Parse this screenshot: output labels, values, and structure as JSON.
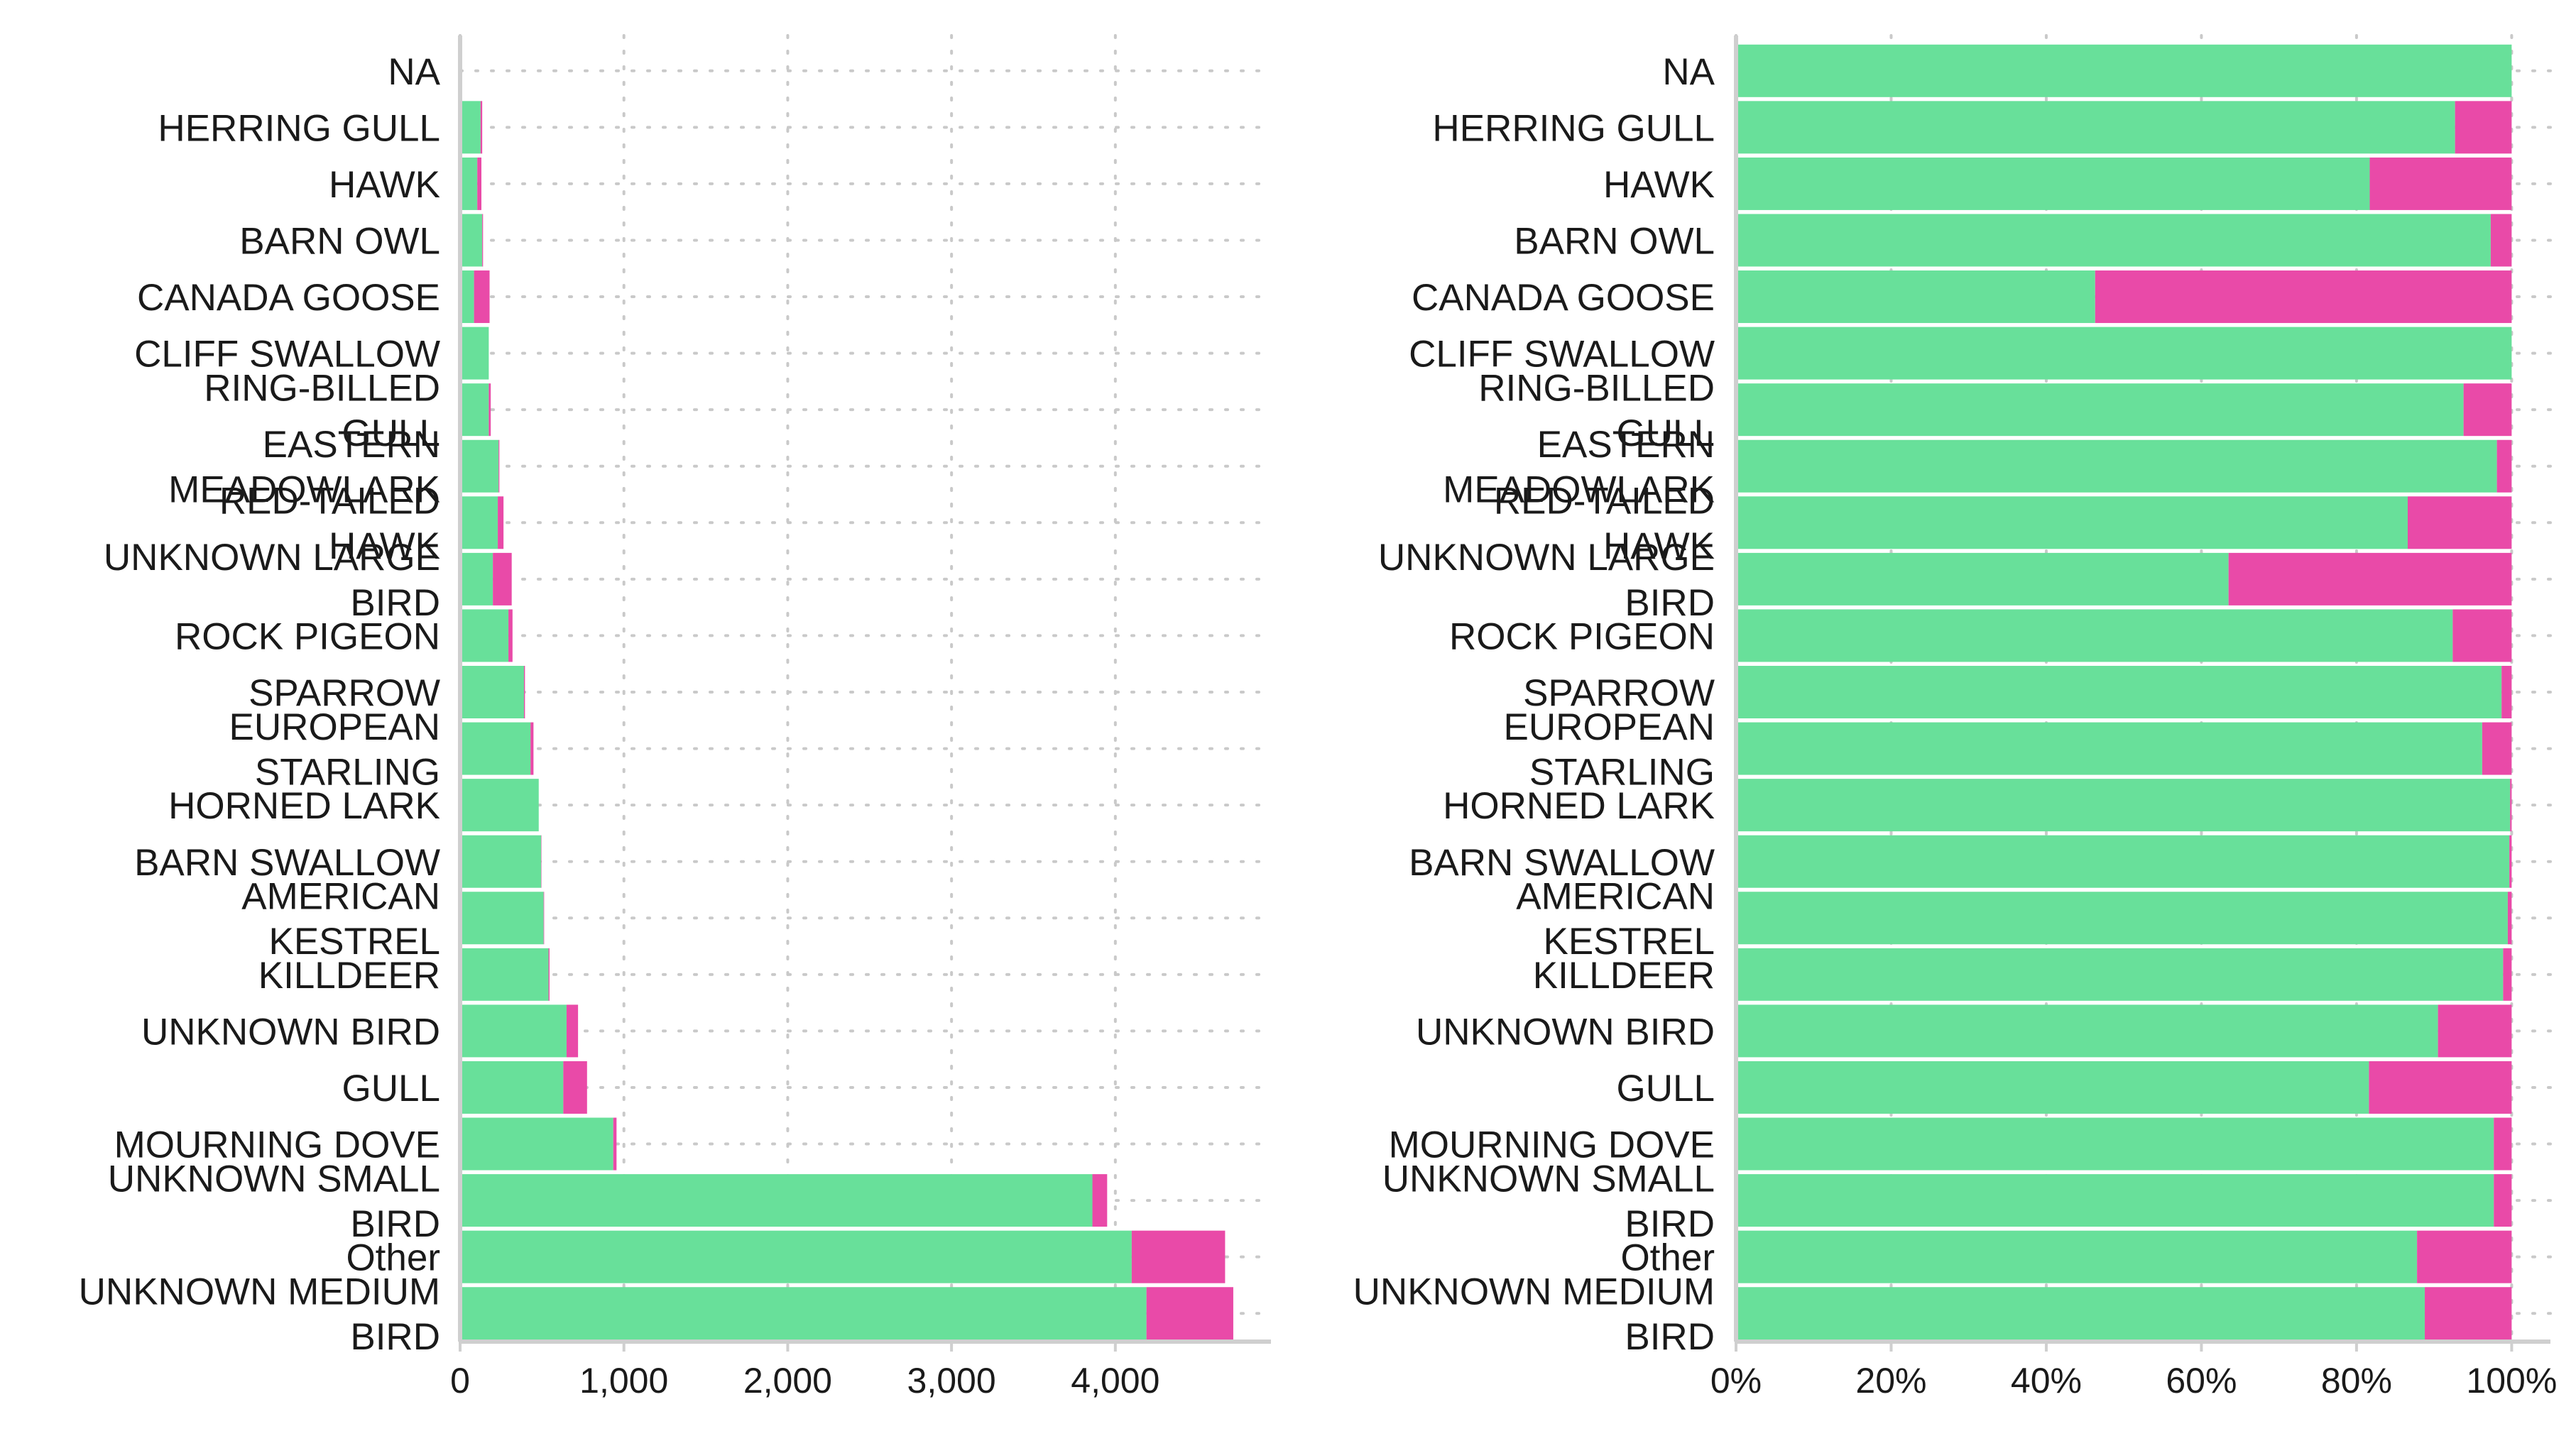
{
  "colors": {
    "series_a": "#68e09a",
    "series_b": "#e94aa8",
    "grid": "#c9c9c9",
    "axis": "#cfcfcf",
    "text": "#1a1a1a"
  },
  "chart_data": [
    {
      "type": "bar",
      "orientation": "horizontal",
      "stacked": true,
      "title": "",
      "xlabel": "",
      "ylabel": "",
      "grid": true,
      "grid_style": "dotted",
      "legend": "none",
      "xlim": [
        0,
        4950
      ],
      "x_ticks": [
        0,
        1000,
        2000,
        3000,
        4000
      ],
      "x_tick_labels": [
        "0",
        "1,000",
        "2,000",
        "3,000",
        "4,000"
      ],
      "categories": [
        "NA",
        "HERRING GULL",
        "HAWK",
        "BARN OWL",
        "CANADA GOOSE",
        "CLIFF SWALLOW",
        "RING-BILLED GULL",
        "EASTERN MEADOWLARK",
        "RED-TAILED HAWK",
        "UNKNOWN LARGE BIRD",
        "ROCK PIGEON",
        "SPARROW",
        "EUROPEAN STARLING",
        "HORNED LARK",
        "BARN SWALLOW",
        "AMERICAN KESTREL",
        "KILLDEER",
        "UNKNOWN BIRD",
        "GULL",
        "MOURNING DOVE",
        "UNKNOWN SMALL BIRD",
        "Other",
        "UNKNOWN MEDIUM BIRD"
      ],
      "category_lines": [
        [
          "NA"
        ],
        [
          "HERRING GULL"
        ],
        [
          "HAWK"
        ],
        [
          "BARN OWL"
        ],
        [
          "CANADA GOOSE"
        ],
        [
          "CLIFF SWALLOW"
        ],
        [
          "RING-BILLED",
          "GULL"
        ],
        [
          "EASTERN",
          "MEADOWLARK"
        ],
        [
          "RED-TAILED",
          "HAWK"
        ],
        [
          "UNKNOWN LARGE",
          "BIRD"
        ],
        [
          "ROCK PIGEON"
        ],
        [
          "SPARROW"
        ],
        [
          "EUROPEAN",
          "STARLING"
        ],
        [
          "HORNED LARK"
        ],
        [
          "BARN SWALLOW"
        ],
        [
          "AMERICAN",
          "KESTREL"
        ],
        [
          "KILLDEER"
        ],
        [
          "UNKNOWN BIRD"
        ],
        [
          "GULL"
        ],
        [
          "MOURNING DOVE"
        ],
        [
          "UNKNOWN SMALL",
          "BIRD"
        ],
        [
          "Other"
        ],
        [
          "UNKNOWN MEDIUM",
          "BIRD"
        ]
      ],
      "series": [
        {
          "values": [
            0,
            125,
            105,
            135,
            85,
            175,
            175,
            235,
            230,
            200,
            295,
            390,
            430,
            480,
            495,
            510,
            540,
            650,
            630,
            935,
            3860,
            4100,
            4190
          ]
        },
        {
          "values": [
            0,
            10,
            25,
            5,
            95,
            0,
            12,
            5,
            35,
            115,
            25,
            6,
            18,
            0,
            2,
            3,
            6,
            70,
            145,
            20,
            90,
            570,
            530
          ]
        }
      ]
    },
    {
      "type": "bar",
      "orientation": "horizontal",
      "stacked": true,
      "normalized": true,
      "title": "",
      "xlabel": "",
      "ylabel": "",
      "grid": true,
      "grid_style": "dotted",
      "legend": "none",
      "xlim": [
        0,
        1.05
      ],
      "x_ticks": [
        0,
        0.2,
        0.4,
        0.6,
        0.8,
        1.0
      ],
      "x_tick_labels": [
        "0%",
        "20%",
        "40%",
        "60%",
        "80%",
        "100%"
      ],
      "categories": [
        "NA",
        "HERRING GULL",
        "HAWK",
        "BARN OWL",
        "CANADA GOOSE",
        "CLIFF SWALLOW",
        "RING-BILLED GULL",
        "EASTERN MEADOWLARK",
        "RED-TAILED HAWK",
        "UNKNOWN LARGE BIRD",
        "ROCK PIGEON",
        "SPARROW",
        "EUROPEAN STARLING",
        "HORNED LARK",
        "BARN SWALLOW",
        "AMERICAN KESTREL",
        "KILLDEER",
        "UNKNOWN BIRD",
        "GULL",
        "MOURNING DOVE",
        "UNKNOWN SMALL BIRD",
        "Other",
        "UNKNOWN MEDIUM BIRD"
      ],
      "category_lines": [
        [
          "NA"
        ],
        [
          "HERRING GULL"
        ],
        [
          "HAWK"
        ],
        [
          "BARN OWL"
        ],
        [
          "CANADA GOOSE"
        ],
        [
          "CLIFF SWALLOW"
        ],
        [
          "RING-BILLED",
          "GULL"
        ],
        [
          "EASTERN",
          "MEADOWLARK"
        ],
        [
          "RED-TAILED",
          "HAWK"
        ],
        [
          "UNKNOWN LARGE",
          "BIRD"
        ],
        [
          "ROCK PIGEON"
        ],
        [
          "SPARROW"
        ],
        [
          "EUROPEAN",
          "STARLING"
        ],
        [
          "HORNED LARK"
        ],
        [
          "BARN SWALLOW"
        ],
        [
          "AMERICAN",
          "KESTREL"
        ],
        [
          "KILLDEER"
        ],
        [
          "UNKNOWN BIRD"
        ],
        [
          "GULL"
        ],
        [
          "MOURNING DOVE"
        ],
        [
          "UNKNOWN SMALL",
          "BIRD"
        ],
        [
          "Other"
        ],
        [
          "UNKNOWN MEDIUM",
          "BIRD"
        ]
      ],
      "series": [
        {
          "values": [
            1.0,
            0.927,
            0.817,
            0.973,
            0.463,
            1.0,
            0.938,
            0.981,
            0.866,
            0.635,
            0.924,
            0.987,
            0.962,
            0.998,
            0.997,
            0.995,
            0.989,
            0.905,
            0.816,
            0.977,
            0.977,
            0.878,
            0.888
          ]
        },
        {
          "values": [
            0,
            0.073,
            0.183,
            0.027,
            0.537,
            0,
            0.062,
            0.019,
            0.134,
            0.365,
            0.076,
            0.013,
            0.038,
            0.002,
            0.003,
            0.005,
            0.011,
            0.095,
            0.184,
            0.023,
            0.023,
            0.122,
            0.112
          ]
        }
      ]
    }
  ]
}
